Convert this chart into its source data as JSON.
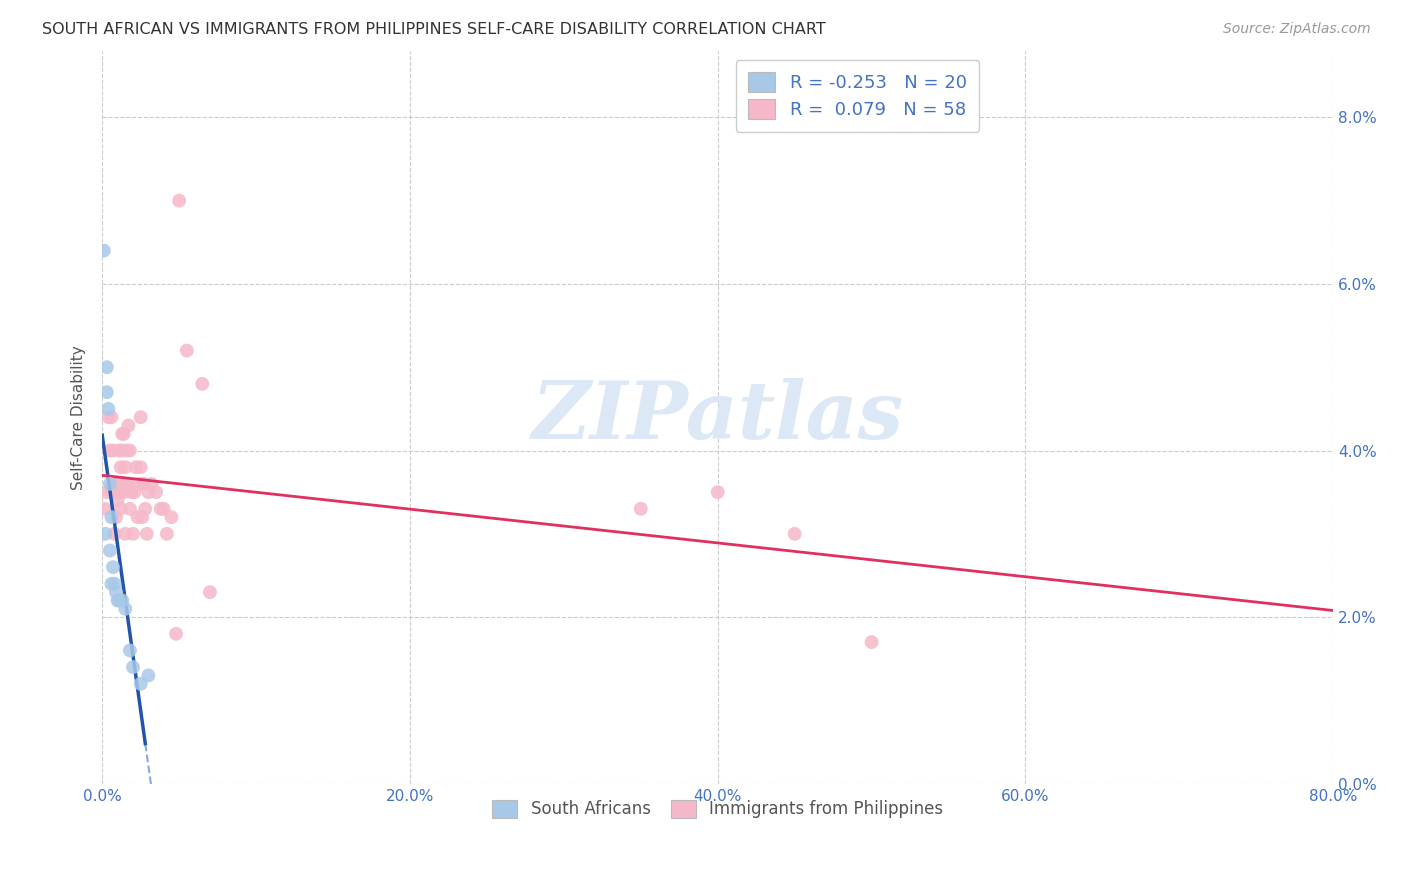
{
  "title": "SOUTH AFRICAN VS IMMIGRANTS FROM PHILIPPINES SELF-CARE DISABILITY CORRELATION CHART",
  "source": "Source: ZipAtlas.com",
  "ylabel": "Self-Care Disability",
  "xlim": [
    0.0,
    0.8
  ],
  "ylim": [
    0.0,
    0.088
  ],
  "legend_label1": "South Africans",
  "legend_label2": "Immigrants from Philippines",
  "R1": "-0.253",
  "N1": "20",
  "R2": "0.079",
  "N2": "58",
  "color_blue": "#a8c8e8",
  "color_pink": "#f5b8c8",
  "color_blue_line": "#2255aa",
  "color_pink_line": "#e03060",
  "color_blue_dashed": "#88aadd",
  "color_blue_text": "#4472c4",
  "watermark_color": "#dce8f5",
  "background_color": "#ffffff",
  "sa_x": [
    0.001,
    0.002,
    0.003,
    0.003,
    0.004,
    0.005,
    0.005,
    0.006,
    0.006,
    0.007,
    0.008,
    0.009,
    0.01,
    0.011,
    0.013,
    0.015,
    0.018,
    0.02,
    0.025,
    0.03
  ],
  "sa_y": [
    0.064,
    0.03,
    0.05,
    0.047,
    0.045,
    0.036,
    0.028,
    0.032,
    0.024,
    0.026,
    0.024,
    0.023,
    0.022,
    0.022,
    0.022,
    0.021,
    0.016,
    0.014,
    0.012,
    0.013
  ],
  "ph_x": [
    0.002,
    0.003,
    0.004,
    0.005,
    0.006,
    0.006,
    0.007,
    0.007,
    0.008,
    0.008,
    0.009,
    0.009,
    0.01,
    0.01,
    0.011,
    0.011,
    0.012,
    0.012,
    0.013,
    0.013,
    0.014,
    0.014,
    0.015,
    0.015,
    0.016,
    0.016,
    0.017,
    0.017,
    0.018,
    0.018,
    0.019,
    0.02,
    0.021,
    0.022,
    0.023,
    0.024,
    0.025,
    0.025,
    0.026,
    0.027,
    0.028,
    0.029,
    0.03,
    0.032,
    0.035,
    0.038,
    0.04,
    0.042,
    0.045,
    0.048,
    0.05,
    0.055,
    0.065,
    0.07,
    0.35,
    0.4,
    0.45,
    0.5
  ],
  "ph_y": [
    0.033,
    0.035,
    0.044,
    0.04,
    0.035,
    0.044,
    0.04,
    0.036,
    0.03,
    0.035,
    0.032,
    0.035,
    0.034,
    0.036,
    0.04,
    0.035,
    0.038,
    0.033,
    0.04,
    0.042,
    0.035,
    0.042,
    0.038,
    0.03,
    0.036,
    0.04,
    0.043,
    0.036,
    0.033,
    0.04,
    0.035,
    0.03,
    0.035,
    0.038,
    0.032,
    0.036,
    0.044,
    0.038,
    0.032,
    0.036,
    0.033,
    0.03,
    0.035,
    0.036,
    0.035,
    0.033,
    0.033,
    0.03,
    0.032,
    0.018,
    0.07,
    0.052,
    0.048,
    0.023,
    0.033,
    0.035,
    0.03,
    0.017
  ]
}
